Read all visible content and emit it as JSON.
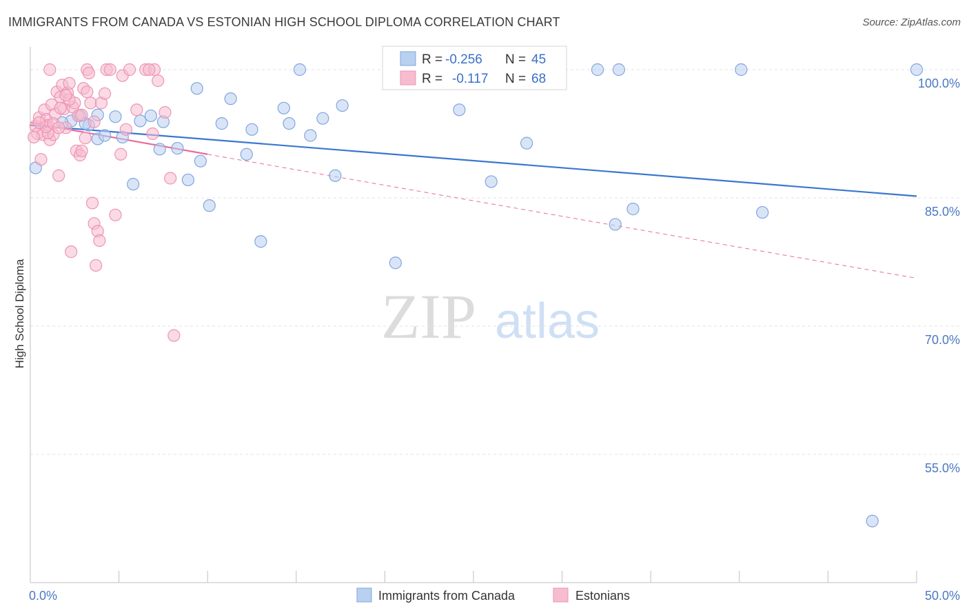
{
  "header": {
    "title": "IMMIGRANTS FROM CANADA VS ESTONIAN HIGH SCHOOL DIPLOMA CORRELATION CHART",
    "source": "Source: ZipAtlas.com"
  },
  "watermark": {
    "zip": "ZIP",
    "atlas": "atlas"
  },
  "colors": {
    "blue_fill": "#b9d0f0",
    "blue_stroke": "#7fa6de",
    "blue_line": "#3a76d0",
    "pink_fill": "#f6bcd0",
    "pink_stroke": "#ee93b3",
    "pink_line": "#e96a9a",
    "tick_text": "#4a78c2",
    "grid": "#e2e2e2"
  },
  "stats": [
    {
      "r_label": "R =",
      "r_value": "-0.256",
      "n_label": "N =",
      "n_value": "45"
    },
    {
      "r_label": "R =",
      "r_value": "-0.117",
      "n_label": "N =",
      "n_value": "68"
    }
  ],
  "chart_data": {
    "type": "scatter",
    "ylabel": "High School Diploma",
    "xlim": [
      0,
      50
    ],
    "ylim": [
      40,
      102.5
    ],
    "x_ticks": [
      {
        "value": 0,
        "label": "0.0%"
      },
      {
        "value": 50,
        "label": "50.0%"
      }
    ],
    "y_ticks": [
      {
        "value": 100,
        "label": "100.0%"
      },
      {
        "value": 85,
        "label": "85.0%"
      },
      {
        "value": 70,
        "label": "70.0%"
      },
      {
        "value": 55,
        "label": "55.0%"
      }
    ],
    "grid": true,
    "legend_position": "bottom-center",
    "series": [
      {
        "name": "Immigrants from Canada",
        "color": "#b9d0f0",
        "trend": {
          "x": [
            0,
            50
          ],
          "y": [
            93.5,
            85.2
          ]
        },
        "points": [
          [
            0.3,
            88.5
          ],
          [
            2.3,
            94.0
          ],
          [
            2.8,
            94.6
          ],
          [
            3.3,
            93.5
          ],
          [
            3.8,
            94.7
          ],
          [
            3.8,
            91.9
          ],
          [
            4.2,
            92.3
          ],
          [
            4.8,
            94.5
          ],
          [
            5.2,
            92.1
          ],
          [
            5.8,
            86.6
          ],
          [
            6.2,
            94.0
          ],
          [
            6.8,
            94.6
          ],
          [
            7.5,
            93.9
          ],
          [
            7.3,
            90.7
          ],
          [
            8.3,
            90.8
          ],
          [
            8.9,
            87.1
          ],
          [
            9.4,
            97.8
          ],
          [
            9.6,
            89.3
          ],
          [
            10.1,
            84.1
          ],
          [
            10.8,
            93.7
          ],
          [
            11.3,
            96.6
          ],
          [
            12.2,
            90.1
          ],
          [
            12.5,
            93.0
          ],
          [
            13.0,
            79.9
          ],
          [
            14.3,
            95.5
          ],
          [
            14.6,
            93.7
          ],
          [
            15.2,
            100.0
          ],
          [
            15.8,
            92.3
          ],
          [
            16.5,
            94.3
          ],
          [
            17.2,
            87.6
          ],
          [
            17.6,
            95.8
          ],
          [
            20.6,
            77.4
          ],
          [
            24.2,
            95.3
          ],
          [
            26.0,
            86.9
          ],
          [
            32.0,
            100.0
          ],
          [
            33.2,
            100.0
          ],
          [
            33.0,
            81.9
          ],
          [
            34.0,
            83.7
          ],
          [
            40.1,
            100.0
          ],
          [
            41.3,
            83.3
          ],
          [
            47.5,
            47.2
          ],
          [
            50.0,
            100.0
          ],
          [
            28.0,
            91.4
          ],
          [
            3.1,
            93.7
          ],
          [
            1.8,
            93.8
          ]
        ]
      },
      {
        "name": "Estonians",
        "color": "#f6bcd0",
        "trend": {
          "x": [
            0,
            10
          ],
          "y": [
            93.8,
            90.1
          ]
        },
        "trend_extended": {
          "x": [
            10,
            50
          ],
          "y": [
            90.1,
            75.6
          ]
        },
        "points": [
          [
            0.3,
            93.4
          ],
          [
            0.4,
            92.5
          ],
          [
            0.5,
            94.4
          ],
          [
            0.6,
            89.5
          ],
          [
            0.7,
            92.4
          ],
          [
            0.8,
            95.3
          ],
          [
            0.9,
            94.2
          ],
          [
            1.0,
            93.5
          ],
          [
            1.1,
            91.8
          ],
          [
            1.2,
            95.9
          ],
          [
            1.3,
            92.4
          ],
          [
            1.4,
            94.8
          ],
          [
            1.5,
            97.4
          ],
          [
            1.6,
            87.6
          ],
          [
            1.7,
            96.8
          ],
          [
            1.1,
            100.0
          ],
          [
            1.8,
            98.2
          ],
          [
            1.9,
            95.4
          ],
          [
            2.0,
            93.2
          ],
          [
            2.1,
            97.3
          ],
          [
            2.2,
            98.4
          ],
          [
            2.3,
            78.7
          ],
          [
            2.4,
            95.6
          ],
          [
            2.5,
            96.1
          ],
          [
            2.6,
            90.5
          ],
          [
            2.7,
            94.6
          ],
          [
            2.8,
            90.0
          ],
          [
            2.9,
            90.5
          ],
          [
            3.0,
            97.8
          ],
          [
            3.1,
            92.0
          ],
          [
            3.2,
            97.4
          ],
          [
            3.2,
            100.0
          ],
          [
            3.3,
            99.6
          ],
          [
            3.4,
            96.1
          ],
          [
            3.5,
            84.4
          ],
          [
            3.6,
            82.0
          ],
          [
            3.7,
            77.1
          ],
          [
            3.8,
            81.1
          ],
          [
            3.9,
            80.0
          ],
          [
            4.0,
            96.1
          ],
          [
            4.2,
            97.2
          ],
          [
            4.3,
            100.0
          ],
          [
            4.5,
            100.0
          ],
          [
            4.8,
            83.0
          ],
          [
            5.1,
            90.1
          ],
          [
            5.2,
            99.3
          ],
          [
            5.4,
            93.0
          ],
          [
            6.0,
            95.3
          ],
          [
            6.5,
            100.0
          ],
          [
            7.0,
            100.0
          ],
          [
            7.2,
            98.7
          ],
          [
            7.6,
            95.0
          ],
          [
            7.9,
            87.3
          ],
          [
            8.1,
            68.9
          ],
          [
            6.7,
            100.0
          ],
          [
            6.9,
            92.5
          ],
          [
            5.6,
            100.0
          ],
          [
            1.0,
            92.6
          ],
          [
            0.2,
            92.1
          ],
          [
            2.2,
            96.5
          ],
          [
            1.7,
            95.5
          ],
          [
            0.9,
            93.3
          ],
          [
            3.6,
            93.9
          ],
          [
            2.9,
            94.7
          ],
          [
            1.3,
            93.7
          ],
          [
            1.6,
            93.2
          ],
          [
            0.5,
            93.8
          ],
          [
            2.0,
            97.0
          ]
        ]
      }
    ]
  }
}
